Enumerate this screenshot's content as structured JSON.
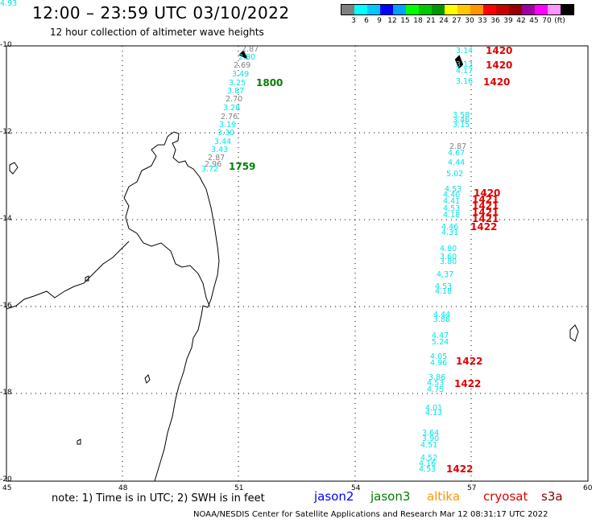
{
  "header": {
    "title": "12:00 – 23:59 UTC 03/10/2022",
    "subtitle": "12 hour collection of altimeter wave heights"
  },
  "legend": {
    "colors": [
      "#808080",
      "#00ffff",
      "#00c8ff",
      "#0000ff",
      "#00a0ff",
      "#00ff00",
      "#00c800",
      "#009600",
      "#ffff00",
      "#ffc800",
      "#ff9600",
      "#ff0000",
      "#c80000",
      "#960000",
      "#a000a0",
      "#ff00ff",
      "#ff96ff",
      "#000000"
    ],
    "labels": [
      "3",
      "6",
      "9",
      "12",
      "15",
      "18",
      "21",
      "24",
      "27",
      "30",
      "33",
      "36",
      "39",
      "42",
      "45",
      "70",
      "(ft)"
    ]
  },
  "axes": {
    "lat_labels": [
      "-10",
      "-12",
      "-14",
      "-16",
      "-18",
      "-20"
    ],
    "lon_labels": [
      "45",
      "48",
      "51",
      "54",
      "57",
      "60"
    ]
  },
  "observations": [
    {
      "t": "2.87",
      "c": "#808080"
    },
    {
      "t": "2.80",
      "c": "#00e5e5"
    },
    {
      "t": "2.69",
      "c": "#808080"
    },
    {
      "t": "3.49",
      "c": "#00e5e5"
    },
    {
      "t": "3.25",
      "c": "#00e5e5"
    },
    {
      "t": "3.87",
      "c": "#00e5e5"
    },
    {
      "t": "2.70",
      "c": "#808080"
    },
    {
      "t": "3.28",
      "c": "#00e5e5"
    },
    {
      "t": "2.76",
      "c": "#808080"
    },
    {
      "t": "3.19",
      "c": "#00e5e5"
    },
    {
      "t": "3.30",
      "c": "#00e5e5"
    },
    {
      "t": "3.44",
      "c": "#00e5e5"
    },
    {
      "t": "3.43",
      "c": "#00e5e5"
    },
    {
      "t": "2.87",
      "c": "#808080"
    },
    {
      "t": "2.96",
      "c": "#808080"
    },
    {
      "t": "3.72",
      "c": "#00e5e5"
    },
    {
      "t": "3.14",
      "c": "#00e5e5"
    },
    {
      "t": "3.13",
      "c": "#00e5e5"
    },
    {
      "t": "4.17",
      "c": "#00e5e5"
    },
    {
      "t": "3.16",
      "c": "#00e5e5"
    },
    {
      "t": "3.58",
      "c": "#00e5e5"
    },
    {
      "t": "3.46",
      "c": "#00e5e5"
    },
    {
      "t": "3.15",
      "c": "#00e5e5"
    },
    {
      "t": "2.87",
      "c": "#808080"
    },
    {
      "t": "4.67",
      "c": "#00e5e5"
    },
    {
      "t": "4.44",
      "c": "#00e5e5"
    },
    {
      "t": "5.02",
      "c": "#00e5e5"
    },
    {
      "t": "4.53",
      "c": "#00e5e5"
    },
    {
      "t": "4.40",
      "c": "#00e5e5"
    },
    {
      "t": "4.41",
      "c": "#00e5e5"
    },
    {
      "t": "4.53",
      "c": "#00e5e5"
    },
    {
      "t": "4.18",
      "c": "#00e5e5"
    },
    {
      "t": "4.46",
      "c": "#00e5e5"
    },
    {
      "t": "4.31",
      "c": "#00e5e5"
    },
    {
      "t": "4.80",
      "c": "#00e5e5"
    },
    {
      "t": "3.60",
      "c": "#00e5e5"
    },
    {
      "t": "3.80",
      "c": "#00e5e5"
    },
    {
      "t": "4.37",
      "c": "#00e5e5"
    },
    {
      "t": "4.53",
      "c": "#00e5e5"
    },
    {
      "t": "4.18",
      "c": "#00e5e5"
    },
    {
      "t": "4.44",
      "c": "#00e5e5"
    },
    {
      "t": "3.88",
      "c": "#00e5e5"
    },
    {
      "t": "4.47",
      "c": "#00e5e5"
    },
    {
      "t": "5.24",
      "c": "#00e5e5"
    },
    {
      "t": "4.05",
      "c": "#00e5e5"
    },
    {
      "t": "4.96",
      "c": "#00e5e5"
    },
    {
      "t": "3.86",
      "c": "#00e5e5"
    },
    {
      "t": "4.53",
      "c": "#00e5e5"
    },
    {
      "t": "4.75",
      "c": "#00e5e5"
    },
    {
      "t": "4.01",
      "c": "#00e5e5"
    },
    {
      "t": "4.13",
      "c": "#00e5e5"
    },
    {
      "t": "3.64",
      "c": "#00e5e5"
    },
    {
      "t": "3.90",
      "c": "#00e5e5"
    },
    {
      "t": "4.51",
      "c": "#00e5e5"
    },
    {
      "t": "4.52",
      "c": "#00e5e5"
    },
    {
      "t": "4.16",
      "c": "#00e5e5"
    },
    {
      "t": "4.53",
      "c": "#00e5e5"
    },
    {
      "t": "4.93",
      "c": "#00e5e5"
    }
  ],
  "times": [
    {
      "t": "1800",
      "c": "#008000"
    },
    {
      "t": "1759",
      "c": "#008000"
    },
    {
      "t": "1420",
      "c": "#e00000"
    },
    {
      "t": "1420",
      "c": "#e00000"
    },
    {
      "t": "1420",
      "c": "#e00000"
    },
    {
      "t": "1420",
      "c": "#e00000"
    },
    {
      "t": "1421",
      "c": "#e00000"
    },
    {
      "t": "1421",
      "c": "#e00000"
    },
    {
      "t": "1421",
      "c": "#e00000"
    },
    {
      "t": "1421",
      "c": "#e00000"
    },
    {
      "t": "1422",
      "c": "#e00000"
    },
    {
      "t": "1422",
      "c": "#e00000"
    },
    {
      "t": "1422",
      "c": "#e00000"
    },
    {
      "t": "1422",
      "c": "#e00000"
    }
  ],
  "footer": {
    "note": "note: 1) Time is in UTC; 2) SWH is in feet",
    "sats": [
      {
        "name": "jason2",
        "color": "#0000ff"
      },
      {
        "name": "jason3",
        "color": "#008000"
      },
      {
        "name": "altika",
        "color": "#ff9600"
      },
      {
        "name": "cryosat",
        "color": "#e00000"
      },
      {
        "name": "s3a",
        "color": "#800000"
      }
    ],
    "credit": "NOAA/NESDIS Center for Satellite Applications and Research   Mar 12 08:31:17 UTC 2022"
  }
}
